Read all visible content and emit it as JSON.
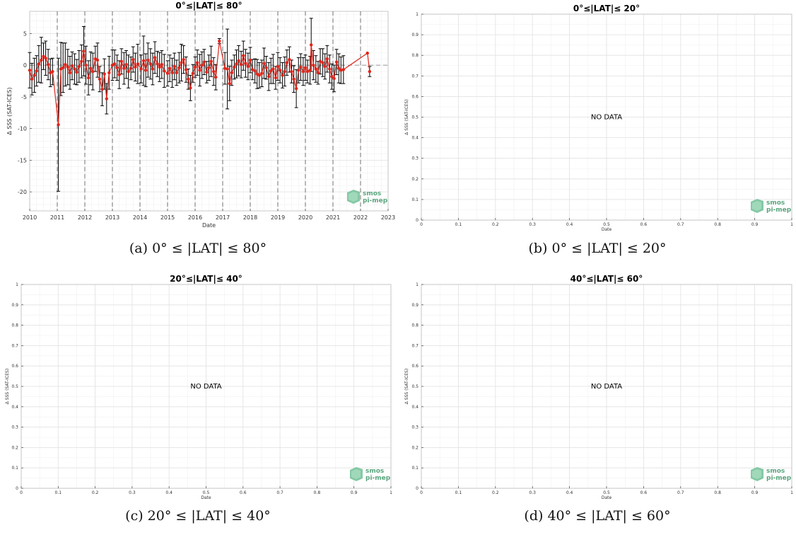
{
  "logo": {
    "line1": "smos",
    "line2": "pi-mep"
  },
  "chart_data": [
    {
      "id": "a",
      "type": "line",
      "title": "0°≤|LAT|≤ 80°",
      "xlabel": "Date",
      "ylabel": "Δ SSS (SAT-ICES)",
      "xlim": [
        2010,
        2023
      ],
      "ylim": [
        -23,
        8.5
      ],
      "xticks": [
        2010,
        2011,
        2012,
        2013,
        2014,
        2015,
        2016,
        2017,
        2018,
        2019,
        2020,
        2021,
        2022,
        2023
      ],
      "yticks": [
        5,
        0,
        -5,
        -10,
        -15,
        -20
      ],
      "year_dividers": [
        2011,
        2012,
        2013,
        2014,
        2015,
        2016,
        2017,
        2018,
        2019,
        2020,
        2021,
        2022
      ],
      "grid": true,
      "series": [
        {
          "values": [
            {
              "x": 2010.0,
              "y": -0.8,
              "err": 2.8
            },
            {
              "x": 2010.08,
              "y": -2.2,
              "err": 2.5
            },
            {
              "x": 2010.17,
              "y": -1.6,
              "err": 2.7
            },
            {
              "x": 2010.25,
              "y": -0.9,
              "err": 2.4
            },
            {
              "x": 2010.33,
              "y": 0.2,
              "err": 2.9
            },
            {
              "x": 2010.42,
              "y": 0.8,
              "err": 3.6
            },
            {
              "x": 2010.5,
              "y": 1.4,
              "err": 2.1
            },
            {
              "x": 2010.58,
              "y": 1.1,
              "err": 2.7
            },
            {
              "x": 2010.67,
              "y": 0.1,
              "err": 2.4
            },
            {
              "x": 2010.75,
              "y": -1.2,
              "err": 2.2
            },
            {
              "x": 2010.83,
              "y": -1.0,
              "err": 2.1
            },
            {
              "x": 2011.04,
              "y": -9.4,
              "err": 10.5
            },
            {
              "x": 2011.13,
              "y": -0.6,
              "err": 4.2
            },
            {
              "x": 2011.21,
              "y": -0.4,
              "err": 3.9
            },
            {
              "x": 2011.29,
              "y": 0.1,
              "err": 3.4
            },
            {
              "x": 2011.38,
              "y": -0.3,
              "err": 2.8
            },
            {
              "x": 2011.46,
              "y": -1.2,
              "err": 2.6
            },
            {
              "x": 2011.54,
              "y": -0.1,
              "err": 2.2
            },
            {
              "x": 2011.63,
              "y": -0.6,
              "err": 2.4
            },
            {
              "x": 2011.71,
              "y": -1.1,
              "err": 2.0
            },
            {
              "x": 2011.79,
              "y": -0.2,
              "err": 2.5
            },
            {
              "x": 2011.88,
              "y": 0.6,
              "err": 2.6
            },
            {
              "x": 2011.96,
              "y": 2.2,
              "err": 3.9
            },
            {
              "x": 2012.04,
              "y": 0.0,
              "err": 3.0
            },
            {
              "x": 2012.13,
              "y": -2.0,
              "err": 2.7
            },
            {
              "x": 2012.21,
              "y": -0.5,
              "err": 2.6
            },
            {
              "x": 2012.29,
              "y": -1.0,
              "err": 2.9
            },
            {
              "x": 2012.38,
              "y": 1.0,
              "err": 2.0
            },
            {
              "x": 2012.46,
              "y": 0.8,
              "err": 2.7
            },
            {
              "x": 2012.54,
              "y": -2.2,
              "err": 2.0
            },
            {
              "x": 2012.63,
              "y": -3.8,
              "err": 2.6
            },
            {
              "x": 2012.71,
              "y": -1.4,
              "err": 2.4
            },
            {
              "x": 2012.79,
              "y": -5.3,
              "err": 2.4
            },
            {
              "x": 2012.88,
              "y": -1.2,
              "err": 2.6
            },
            {
              "x": 2013.0,
              "y": 0.0,
              "err": 2.4
            },
            {
              "x": 2013.08,
              "y": 0.2,
              "err": 2.2
            },
            {
              "x": 2013.17,
              "y": -0.4,
              "err": 2.0
            },
            {
              "x": 2013.25,
              "y": -1.5,
              "err": 2.2
            },
            {
              "x": 2013.33,
              "y": 0.6,
              "err": 2.0
            },
            {
              "x": 2013.42,
              "y": -0.5,
              "err": 2.5
            },
            {
              "x": 2013.5,
              "y": 0.1,
              "err": 2.2
            },
            {
              "x": 2013.58,
              "y": -1.0,
              "err": 2.6
            },
            {
              "x": 2013.67,
              "y": -0.5,
              "err": 1.8
            },
            {
              "x": 2013.75,
              "y": 0.9,
              "err": 2.0
            },
            {
              "x": 2013.83,
              "y": -0.3,
              "err": 2.2
            },
            {
              "x": 2013.92,
              "y": 0.2,
              "err": 3.1
            },
            {
              "x": 2014.04,
              "y": -0.6,
              "err": 2.2
            },
            {
              "x": 2014.13,
              "y": 0.7,
              "err": 3.9
            },
            {
              "x": 2014.21,
              "y": -0.8,
              "err": 2.6
            },
            {
              "x": 2014.29,
              "y": 0.8,
              "err": 2.7
            },
            {
              "x": 2014.38,
              "y": 0.2,
              "err": 2.4
            },
            {
              "x": 2014.46,
              "y": -0.6,
              "err": 2.5
            },
            {
              "x": 2014.54,
              "y": 1.2,
              "err": 2.5
            },
            {
              "x": 2014.63,
              "y": 0.2,
              "err": 2.0
            },
            {
              "x": 2014.71,
              "y": -0.3,
              "err": 2.3
            },
            {
              "x": 2014.79,
              "y": 0.1,
              "err": 2.2
            },
            {
              "x": 2014.88,
              "y": -0.9,
              "err": 2.6
            },
            {
              "x": 2015.0,
              "y": -1.3,
              "err": 2.0
            },
            {
              "x": 2015.08,
              "y": -0.5,
              "err": 2.1
            },
            {
              "x": 2015.17,
              "y": -1.2,
              "err": 2.3
            },
            {
              "x": 2015.25,
              "y": -0.2,
              "err": 2.1
            },
            {
              "x": 2015.33,
              "y": -1.2,
              "err": 2.0
            },
            {
              "x": 2015.42,
              "y": -0.4,
              "err": 2.4
            },
            {
              "x": 2015.5,
              "y": 0.4,
              "err": 2.9
            },
            {
              "x": 2015.58,
              "y": 0.9,
              "err": 2.2
            },
            {
              "x": 2015.67,
              "y": -0.7,
              "err": 2.0
            },
            {
              "x": 2015.75,
              "y": -2.2,
              "err": 1.6
            },
            {
              "x": 2015.83,
              "y": -3.6,
              "err": 2.0
            },
            {
              "x": 2015.92,
              "y": -1.3,
              "err": 1.4
            },
            {
              "x": 2016.0,
              "y": -0.3,
              "err": 1.6
            },
            {
              "x": 2016.08,
              "y": 0.4,
              "err": 2.0
            },
            {
              "x": 2016.17,
              "y": -0.8,
              "err": 2.5
            },
            {
              "x": 2016.25,
              "y": 0.0,
              "err": 2.1
            },
            {
              "x": 2016.33,
              "y": 0.5,
              "err": 2.0
            },
            {
              "x": 2016.42,
              "y": -1.1,
              "err": 1.7
            },
            {
              "x": 2016.5,
              "y": -0.4,
              "err": 2.0
            },
            {
              "x": 2016.58,
              "y": 0.6,
              "err": 2.4
            },
            {
              "x": 2016.67,
              "y": -1.0,
              "err": 2.2
            },
            {
              "x": 2016.75,
              "y": -1.9,
              "err": 2.0
            },
            {
              "x": 2016.88,
              "y": 3.8,
              "err": 0.4
            },
            {
              "x": 2017.08,
              "y": -0.5,
              "err": 2.5
            },
            {
              "x": 2017.17,
              "y": -0.6,
              "err": 6.3
            },
            {
              "x": 2017.25,
              "y": -2.9,
              "err": 2.7
            },
            {
              "x": 2017.33,
              "y": -1.2,
              "err": 2.0
            },
            {
              "x": 2017.42,
              "y": -0.3,
              "err": 1.9
            },
            {
              "x": 2017.5,
              "y": 0.2,
              "err": 2.2
            },
            {
              "x": 2017.58,
              "y": 0.7,
              "err": 2.4
            },
            {
              "x": 2017.67,
              "y": 0.1,
              "err": 2.1
            },
            {
              "x": 2017.75,
              "y": 1.5,
              "err": 2.3
            },
            {
              "x": 2017.83,
              "y": 0.3,
              "err": 2.2
            },
            {
              "x": 2017.92,
              "y": -0.2,
              "err": 2.1
            },
            {
              "x": 2018.0,
              "y": 0.8,
              "err": 2.0
            },
            {
              "x": 2018.08,
              "y": -0.7,
              "err": 1.6
            },
            {
              "x": 2018.17,
              "y": -0.9,
              "err": 1.9
            },
            {
              "x": 2018.25,
              "y": -1.4,
              "err": 2.3
            },
            {
              "x": 2018.33,
              "y": -1.6,
              "err": 2.0
            },
            {
              "x": 2018.42,
              "y": -1.3,
              "err": 2.1
            },
            {
              "x": 2018.5,
              "y": 0.3,
              "err": 2.4
            },
            {
              "x": 2018.58,
              "y": -0.4,
              "err": 1.8
            },
            {
              "x": 2018.67,
              "y": -1.8,
              "err": 2.2
            },
            {
              "x": 2018.75,
              "y": -0.9,
              "err": 2.0
            },
            {
              "x": 2018.83,
              "y": -0.6,
              "err": 2.3
            },
            {
              "x": 2018.92,
              "y": -2.0,
              "err": 1.8
            },
            {
              "x": 2019.0,
              "y": -0.2,
              "err": 2.2
            },
            {
              "x": 2019.08,
              "y": -0.8,
              "err": 2.0
            },
            {
              "x": 2019.17,
              "y": -1.6,
              "err": 2.0
            },
            {
              "x": 2019.25,
              "y": -1.0,
              "err": 2.3
            },
            {
              "x": 2019.33,
              "y": 0.4,
              "err": 2.0
            },
            {
              "x": 2019.42,
              "y": 0.9,
              "err": 2.0
            },
            {
              "x": 2019.5,
              "y": -1.0,
              "err": 1.8
            },
            {
              "x": 2019.58,
              "y": -2.2,
              "err": 2.1
            },
            {
              "x": 2019.67,
              "y": -3.7,
              "err": 3.0
            },
            {
              "x": 2019.75,
              "y": -0.8,
              "err": 2.0
            },
            {
              "x": 2019.83,
              "y": -0.3,
              "err": 2.1
            },
            {
              "x": 2019.92,
              "y": -1.0,
              "err": 2.2
            },
            {
              "x": 2020.0,
              "y": -0.4,
              "err": 2.0
            },
            {
              "x": 2020.08,
              "y": -1.0,
              "err": 1.8
            },
            {
              "x": 2020.17,
              "y": -0.8,
              "err": 2.2
            },
            {
              "x": 2020.21,
              "y": 3.2,
              "err": 4.2
            },
            {
              "x": 2020.29,
              "y": 0.0,
              "err": 2.3
            },
            {
              "x": 2020.38,
              "y": -0.6,
              "err": 2.1
            },
            {
              "x": 2020.46,
              "y": -1.2,
              "err": 1.8
            },
            {
              "x": 2020.54,
              "y": 0.6,
              "err": 2.0
            },
            {
              "x": 2020.63,
              "y": 0.4,
              "err": 2.2
            },
            {
              "x": 2020.71,
              "y": -0.2,
              "err": 2.0
            },
            {
              "x": 2020.79,
              "y": 1.0,
              "err": 2.1
            },
            {
              "x": 2020.88,
              "y": -0.6,
              "err": 2.2
            },
            {
              "x": 2020.96,
              "y": -1.8,
              "err": 2.0
            },
            {
              "x": 2021.04,
              "y": -2.1,
              "err": 2.1
            },
            {
              "x": 2021.13,
              "y": 0.5,
              "err": 2.0
            },
            {
              "x": 2021.21,
              "y": -0.5,
              "err": 2.3
            },
            {
              "x": 2021.29,
              "y": -0.8,
              "err": 2.1
            },
            {
              "x": 2021.38,
              "y": -0.7,
              "err": 2.2
            },
            {
              "x": 2022.25,
              "y": 1.9,
              "err": 0.0
            },
            {
              "x": 2022.33,
              "y": -1.0,
              "err": 0.8
            }
          ]
        }
      ],
      "caption": "(a) 0° ≤ |LAT| ≤ 80°"
    },
    {
      "id": "b",
      "type": "line",
      "title": "0°≤|LAT|≤ 20°",
      "xlabel": "Date",
      "ylabel": "Δ SSS (SAT-ICES)",
      "xlim": [
        0,
        1
      ],
      "ylim": [
        0,
        1
      ],
      "xticks": [
        0,
        0.1,
        0.2,
        0.3,
        0.4,
        0.5,
        0.6,
        0.7,
        0.8,
        0.9,
        1
      ],
      "yticks": [
        0,
        0.1,
        0.2,
        0.3,
        0.4,
        0.5,
        0.6,
        0.7,
        0.8,
        0.9,
        1
      ],
      "grid": true,
      "annotation": "NO DATA",
      "series": [],
      "caption": "(b) 0° ≤ |LAT| ≤ 20°"
    },
    {
      "id": "c",
      "type": "line",
      "title": "20°≤|LAT|≤ 40°",
      "xlabel": "Date",
      "ylabel": "Δ SSS (SAT-ICES)",
      "xlim": [
        0,
        1
      ],
      "ylim": [
        0,
        1
      ],
      "xticks": [
        0,
        0.1,
        0.2,
        0.3,
        0.4,
        0.5,
        0.6,
        0.7,
        0.8,
        0.9,
        1
      ],
      "yticks": [
        0,
        0.1,
        0.2,
        0.3,
        0.4,
        0.5,
        0.6,
        0.7,
        0.8,
        0.9,
        1
      ],
      "grid": true,
      "annotation": "NO DATA",
      "series": [],
      "caption": "(c) 20° ≤ |LAT| ≤ 40°"
    },
    {
      "id": "d",
      "type": "line",
      "title": "40°≤|LAT|≤ 60°",
      "xlabel": "Date",
      "ylabel": "Δ SSS (SAT-ICES)",
      "xlim": [
        0,
        1
      ],
      "ylim": [
        0,
        1
      ],
      "xticks": [
        0,
        0.1,
        0.2,
        0.3,
        0.4,
        0.5,
        0.6,
        0.7,
        0.8,
        0.9,
        1
      ],
      "yticks": [
        0,
        0.1,
        0.2,
        0.3,
        0.4,
        0.5,
        0.6,
        0.7,
        0.8,
        0.9,
        1
      ],
      "grid": true,
      "annotation": "NO DATA",
      "series": [],
      "caption": "(d) 40° ≤ |LAT| ≤ 60°"
    }
  ]
}
